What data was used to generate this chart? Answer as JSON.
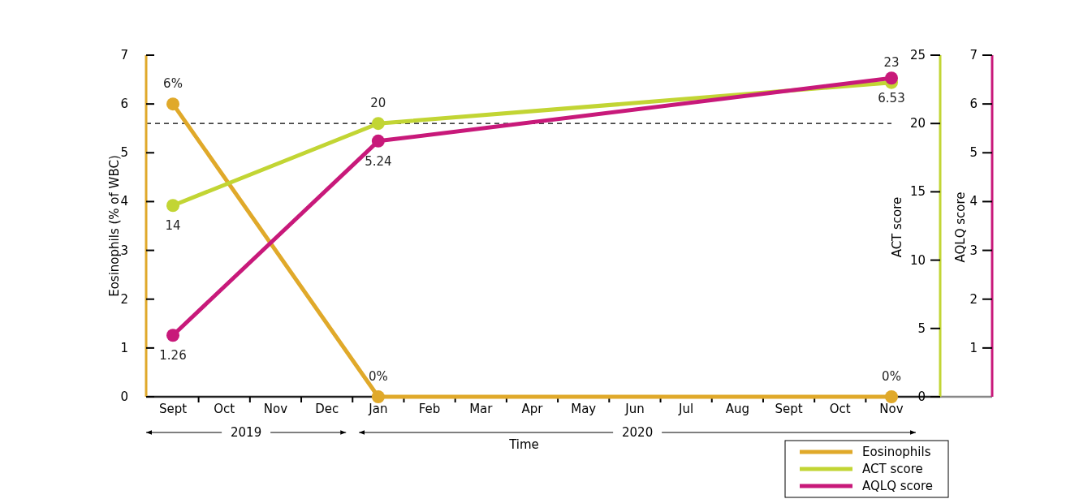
{
  "chart_data": {
    "type": "line",
    "xlabel": "Time",
    "ylabel": "Eosinophils (% of WBC)",
    "y2label": "ACT score",
    "y3label": "AQLQ score",
    "categories": [
      "Sept",
      "Oct",
      "Nov",
      "Dec",
      "Jan",
      "Feb",
      "Mar",
      "Apr",
      "May",
      "Jun",
      "Jul",
      "Aug",
      "Sept",
      "Oct",
      "Nov"
    ],
    "series": [
      {
        "name": "Eosinophils",
        "color": "#e0a92a",
        "values": [
          6,
          null,
          null,
          null,
          0,
          null,
          null,
          null,
          null,
          null,
          null,
          null,
          null,
          null,
          0
        ],
        "value_labels": [
          "6%",
          null,
          null,
          null,
          "0%",
          null,
          null,
          null,
          null,
          null,
          null,
          null,
          null,
          null,
          "0%"
        ]
      },
      {
        "name": "ACT score",
        "color": "#c2d534",
        "axis": "y2",
        "values": [
          14,
          null,
          null,
          null,
          20,
          null,
          null,
          null,
          null,
          null,
          null,
          null,
          null,
          null,
          23
        ],
        "value_labels": [
          "14",
          null,
          null,
          null,
          "20",
          null,
          null,
          null,
          null,
          null,
          null,
          null,
          null,
          null,
          "23"
        ]
      },
      {
        "name": "AQLQ score",
        "color": "#c8197a",
        "axis": "y3",
        "values": [
          1.26,
          null,
          null,
          null,
          5.24,
          null,
          null,
          null,
          null,
          null,
          null,
          null,
          null,
          null,
          6.53
        ],
        "value_labels": [
          "1.26",
          null,
          null,
          null,
          "5.24",
          null,
          null,
          null,
          null,
          null,
          null,
          null,
          null,
          null,
          "6.53"
        ]
      }
    ],
    "ylim": [
      0,
      7
    ],
    "yticks": [
      0,
      1,
      2,
      3,
      4,
      5,
      6,
      7
    ],
    "y2lim": [
      0,
      25
    ],
    "y2ticks": [
      0,
      5,
      10,
      15,
      20,
      25
    ],
    "y3lim": [
      0,
      7
    ],
    "y3ticks": [
      1,
      2,
      3,
      4,
      5,
      6,
      7
    ],
    "ref_lines": [
      {
        "axis": "y2",
        "value": 20,
        "color": "#000000",
        "line_style": "dashed"
      }
    ],
    "annotations": [
      "2019",
      "2020"
    ],
    "marker": "circle",
    "line_style": "solid",
    "legend": "bottom right"
  }
}
